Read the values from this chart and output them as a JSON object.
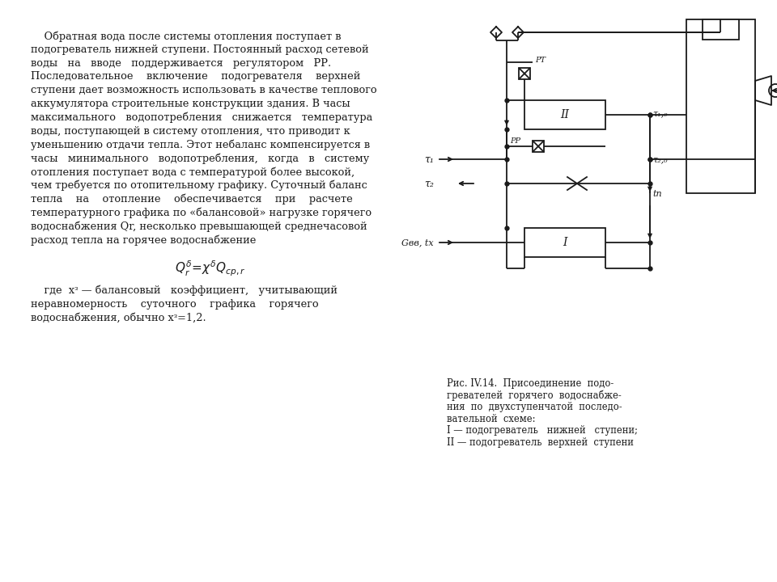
{
  "bg_color": "#ffffff",
  "text_color": "#1a1a1a",
  "fig_caption_lines": [
    "Рис. IV.14.  Присоединение  подо-",
    "гревателей  горячего  водоснабже-",
    "ния  по  двухступенчатой  последо-",
    "вательной  схеме:",
    "I — подогреватель   нижней   ступени;",
    "II — подогреватель  верхней  ступени"
  ],
  "main_lines": [
    "    Обратная вода после системы отопления поступает в",
    "подогреватель нижней ступени. Постоянный расход сетевой",
    "воды   на   вводе   поддерживается   регулятором   РР.",
    "Последовательное    включение    подогревателя    верхней",
    "ступени дает возможность использовать в качестве теплового",
    "аккумулятора строительные конструкции здания. В часы",
    "максимального   водопотребления   снижается   температура",
    "воды, поступающей в систему отопления, что приводит к",
    "уменьшению отдачи тепла. Этот небаланс компенсируется в",
    "часы   минимального   водопотребления,   когда   в   систему",
    "отопления поступает вода с температурой более высокой,",
    "чем требуется по отопительному графику. Суточный баланс",
    "тепла    на    отопление    обеспечивается    при    расчете",
    "температурного графика по «балансовой» нагрузке горячего",
    "водоснабжения Qr, несколько превышающей среднечасовой",
    "расход тепла на горячее водоснабжение"
  ],
  "where_lines": [
    "    где  хᶟ — балансовый   коэффициент,   учитывающий",
    "неравномерность    суточного    графика    горячего",
    "водоснабжения, обычно хᶟ=1,2."
  ]
}
